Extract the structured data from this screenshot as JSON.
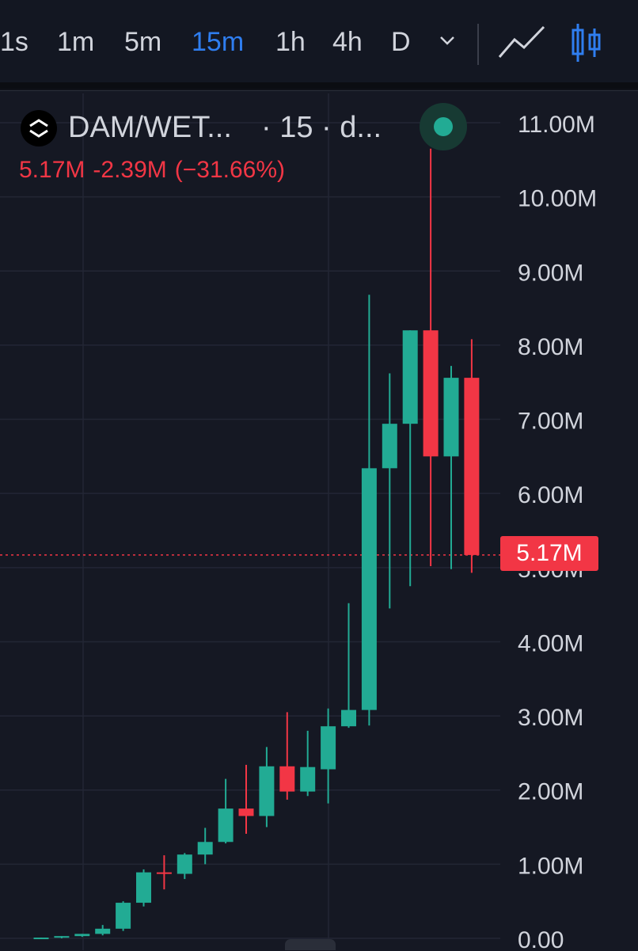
{
  "toolbar": {
    "timeframes": [
      {
        "label": "1s",
        "active": false
      },
      {
        "label": "1m",
        "active": false
      },
      {
        "label": "5m",
        "active": false
      },
      {
        "label": "15m",
        "active": true
      },
      {
        "label": "1h",
        "active": false
      },
      {
        "label": "4h",
        "active": false
      },
      {
        "label": "D",
        "active": false
      }
    ],
    "icons": [
      "chevron-down-icon",
      "line-chart-icon",
      "candlestick-chart-icon"
    ]
  },
  "legend": {
    "symbol": "DAM/WET...",
    "interval": "· 15 · d...",
    "close": "5.17M",
    "change": "-2.39M",
    "change_pct": "(−31.66%)",
    "status_color": "#22ab94"
  },
  "colors": {
    "up": "#22ab94",
    "down": "#f23645",
    "accent": "#2f7ef0",
    "background": "#151823"
  },
  "price_tag": "5.17M",
  "chart_data": {
    "type": "candlestick",
    "y_unit": "M",
    "ylim": [
      0,
      11.2
    ],
    "y_ticks": [
      "0.00",
      "1.00M",
      "2.00M",
      "3.00M",
      "4.00M",
      "5.00M",
      "6.00M",
      "7.00M",
      "8.00M",
      "9.00M",
      "10.00M",
      "11.00M"
    ],
    "grid": true,
    "last_price": 5.17,
    "candles": [
      {
        "o": 0.0,
        "h": 0.01,
        "l": 0.0,
        "c": 0.01
      },
      {
        "o": 0.01,
        "h": 0.03,
        "l": 0.0,
        "c": 0.03
      },
      {
        "o": 0.03,
        "h": 0.06,
        "l": 0.02,
        "c": 0.06
      },
      {
        "o": 0.06,
        "h": 0.18,
        "l": 0.04,
        "c": 0.13
      },
      {
        "o": 0.13,
        "h": 0.5,
        "l": 0.1,
        "c": 0.48
      },
      {
        "o": 0.48,
        "h": 0.93,
        "l": 0.43,
        "c": 0.89
      },
      {
        "o": 0.89,
        "h": 1.12,
        "l": 0.66,
        "c": 0.87
      },
      {
        "o": 0.87,
        "h": 1.15,
        "l": 0.8,
        "c": 1.13
      },
      {
        "o": 1.13,
        "h": 1.49,
        "l": 1.0,
        "c": 1.3
      },
      {
        "o": 1.3,
        "h": 2.15,
        "l": 1.28,
        "c": 1.75
      },
      {
        "o": 1.75,
        "h": 2.34,
        "l": 1.41,
        "c": 1.65
      },
      {
        "o": 1.65,
        "h": 2.58,
        "l": 1.5,
        "c": 2.32
      },
      {
        "o": 2.32,
        "h": 3.05,
        "l": 1.87,
        "c": 1.98
      },
      {
        "o": 1.98,
        "h": 2.8,
        "l": 1.92,
        "c": 2.31
      },
      {
        "o": 2.28,
        "h": 3.1,
        "l": 1.82,
        "c": 2.86
      },
      {
        "o": 2.86,
        "h": 4.52,
        "l": 2.84,
        "c": 3.08
      },
      {
        "o": 3.08,
        "h": 8.68,
        "l": 2.87,
        "c": 6.34
      },
      {
        "o": 6.34,
        "h": 7.62,
        "l": 4.45,
        "c": 6.94
      },
      {
        "o": 6.94,
        "h": 8.2,
        "l": 4.75,
        "c": 8.2
      },
      {
        "o": 8.2,
        "h": 10.65,
        "l": 5.02,
        "c": 6.5
      },
      {
        "o": 6.5,
        "h": 7.72,
        "l": 4.98,
        "c": 7.56
      },
      {
        "o": 7.56,
        "h": 8.08,
        "l": 4.93,
        "c": 5.17
      }
    ]
  }
}
